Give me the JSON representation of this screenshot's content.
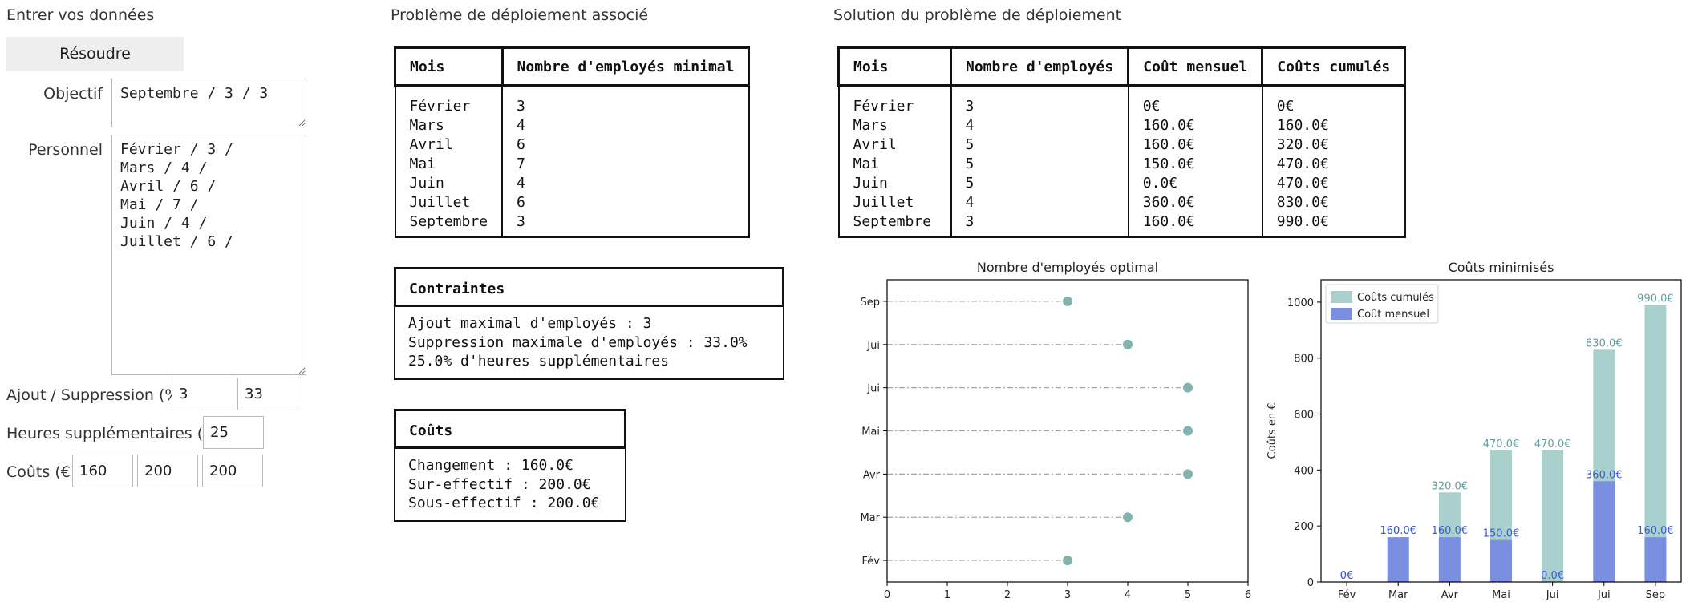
{
  "form": {
    "title": "Entrer vos données",
    "solve_label": "Résoudre",
    "objective_label": "Objectif",
    "objective_value": "Septembre / 3 / 3",
    "personnel_label": "Personnel",
    "personnel_value": "Février / 3 /\nMars / 4 /\nAvril / 6 /\nMai / 7 /\nJuin / 4 /\nJuillet / 6 /",
    "add_remove_label": "Ajout / Suppression (%)",
    "add_value": "3",
    "remove_value": "33",
    "overtime_label": "Heures supplémentaires (%)",
    "overtime_value": "25",
    "costs_label": "Coûts (€)",
    "cost_values": [
      "160",
      "200",
      "200"
    ]
  },
  "problem": {
    "title": "Problème de déploiement associé",
    "headers": [
      "Mois",
      "Nombre d'employés minimal"
    ],
    "rows": [
      [
        "Février",
        "3"
      ],
      [
        "Mars",
        "4"
      ],
      [
        "Avril",
        "6"
      ],
      [
        "Mai",
        "7"
      ],
      [
        "Juin",
        "4"
      ],
      [
        "Juillet",
        "6"
      ],
      [
        "Septembre",
        "3"
      ]
    ],
    "constraints_title": "Contraintes",
    "constraints": [
      "Ajout maximal d'employés : 3",
      "Suppression maximale d'employés : 33.0%",
      "25.0% d'heures supplémentaires"
    ],
    "costs_title": "Coûts",
    "costs": [
      "Changement : 160.0€",
      "Sur-effectif : 200.0€",
      "Sous-effectif : 200.0€"
    ]
  },
  "solution": {
    "title": "Solution du problème de déploiement",
    "headers": [
      "Mois",
      "Nombre d'employés",
      "Coût mensuel",
      "Coûts cumulés"
    ],
    "rows": [
      [
        "Février",
        "3",
        "0€",
        "0€"
      ],
      [
        "Mars",
        "4",
        "160.0€",
        "160.0€"
      ],
      [
        "Avril",
        "5",
        "160.0€",
        "320.0€"
      ],
      [
        "Mai",
        "5",
        "150.0€",
        "470.0€"
      ],
      [
        "Juin",
        "5",
        "0.0€",
        "470.0€"
      ],
      [
        "Juillet",
        "4",
        "360.0€",
        "830.0€"
      ],
      [
        "Septembre",
        "3",
        "160.0€",
        "990.0€"
      ]
    ]
  },
  "chart_data": [
    {
      "type": "scatter",
      "title": "Nombre d'employés optimal",
      "categories": [
        "Fév",
        "Mar",
        "Avr",
        "Mai",
        "Jui",
        "Jui",
        "Sep"
      ],
      "values": [
        3,
        4,
        5,
        5,
        5,
        4,
        3
      ],
      "xlim": [
        0,
        6
      ],
      "xticks": [
        0,
        1,
        2,
        3,
        4,
        5,
        6
      ],
      "color": "#82b3b0",
      "line_color": "#a6a6a6"
    },
    {
      "type": "bar",
      "title": "Coûts minimisés",
      "ylabel": "Coûts en €",
      "categories": [
        "Fév",
        "Mar",
        "Avr",
        "Mai",
        "Jui",
        "Jui",
        "Sep"
      ],
      "ylim": [
        0,
        1080
      ],
      "yticks": [
        0,
        200,
        400,
        600,
        800,
        1000
      ],
      "legend_position": "top-left",
      "series": [
        {
          "name": "Coûts cumulés",
          "values": [
            0,
            160,
            320,
            470,
            470,
            830,
            990
          ],
          "labels": [
            "0€",
            "160.0€",
            "320.0€",
            "470.0€",
            "470.0€",
            "830.0€",
            "990.0€"
          ],
          "color": "#a9d0cd",
          "label_color": "#5f9fa0"
        },
        {
          "name": "Coût mensuel",
          "values": [
            0,
            160,
            160,
            150,
            0,
            360,
            160
          ],
          "labels": [
            "0€",
            "160.0€",
            "160.0€",
            "150.0€",
            "0.0€",
            "360.0€",
            "160.0€"
          ],
          "color": "#7b8fe0",
          "label_color": "#3d5ad6"
        }
      ]
    }
  ]
}
